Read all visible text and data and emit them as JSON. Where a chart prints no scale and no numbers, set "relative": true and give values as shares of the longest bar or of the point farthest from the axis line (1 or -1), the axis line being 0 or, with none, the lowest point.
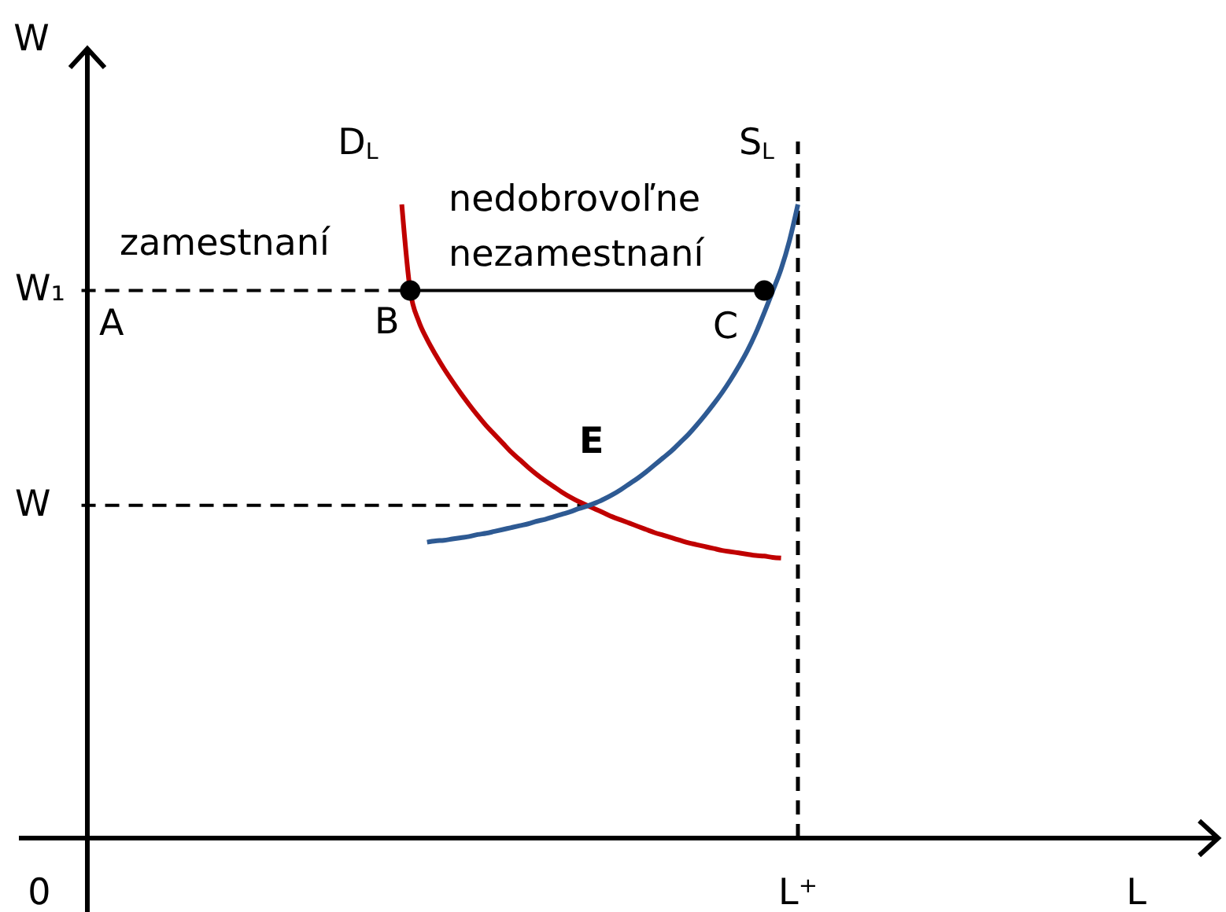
{
  "chart_data": {
    "type": "line",
    "relative": true,
    "ylabel": "W",
    "categories": [
      "0",
      null,
      null,
      null,
      null,
      null,
      null,
      null,
      null,
      null,
      null,
      null,
      null,
      null,
      null,
      null,
      null,
      null,
      null,
      null,
      null,
      null,
      null,
      null,
      null,
      null,
      null,
      null,
      null,
      null,
      null,
      null,
      null,
      null,
      null,
      null,
      null,
      null,
      null,
      null,
      null,
      null,
      null,
      null,
      null,
      null,
      null,
      null,
      null,
      null,
      null,
      null,
      null,
      null,
      null,
      null,
      null,
      null,
      null,
      null,
      null,
      null,
      null,
      null,
      null,
      null,
      null,
      null,
      null,
      null,
      null,
      null,
      null,
      null,
      null,
      null,
      null,
      null,
      null,
      null,
      null,
      null,
      null,
      null,
      null,
      null,
      null,
      null,
      null,
      null,
      "L⁺"
    ],
    "series": [
      {
        "color": "#000000",
        "line_style": "dashed",
        "values": [
          null,
          null,
          null,
          null,
          null,
          0.864,
          0.864,
          0.864,
          0.864,
          0.864,
          0.864,
          0.864,
          0.864,
          0.864,
          0.864,
          0.864,
          0.864,
          0.864,
          0.864,
          0.864,
          0.864,
          0.864,
          0.864,
          0.864,
          0.864,
          0.864,
          0.864,
          0.864,
          0.864,
          0.864,
          0.864,
          0.864,
          0.864,
          0.864,
          0.864,
          0.864,
          0.864,
          0.864,
          0.864,
          0.864,
          0.864,
          0.864,
          0.864,
          0.864,
          0.864,
          null,
          null,
          null,
          null,
          null,
          null,
          null,
          null,
          null,
          null,
          null,
          null,
          null,
          null,
          null,
          null,
          null,
          null,
          null,
          null,
          null,
          null,
          null,
          null,
          null,
          null,
          null,
          null,
          null,
          null,
          null,
          null,
          null,
          null,
          null,
          null,
          null,
          null,
          null,
          null,
          null,
          null,
          null,
          null,
          null,
          null
        ]
      },
      {
        "color": "#000000",
        "line_style": "dashed",
        "values": [
          null,
          null,
          null,
          null,
          null,
          0.525,
          0.525,
          0.525,
          0.525,
          0.525,
          0.525,
          0.525,
          0.525,
          0.525,
          0.525,
          0.525,
          0.525,
          0.525,
          0.525,
          0.525,
          0.525,
          0.525,
          0.525,
          0.525,
          0.525,
          0.525,
          0.525,
          0.525,
          0.525,
          0.525,
          0.525,
          0.525,
          0.525,
          0.525,
          0.525,
          0.525,
          0.525,
          0.525,
          0.525,
          0.525,
          0.525,
          0.525,
          0.525,
          0.525,
          0.525,
          0.525,
          0.525,
          0.525,
          0.525,
          0.525,
          0.525,
          0.525,
          0.525,
          0.525,
          0.525,
          0.525,
          0.525,
          0.525,
          0.525,
          0.525,
          0.525,
          0.525,
          0.525,
          0.525,
          0.525,
          0.525,
          null,
          null,
          null,
          null,
          null,
          null,
          null,
          null,
          null,
          null,
          null,
          null,
          null,
          null,
          null,
          null,
          null,
          null,
          null,
          null,
          null,
          null,
          null,
          null,
          null
        ]
      },
      {
        "name": "D$_{L}$",
        "color": "#c00000",
        "values": [
          null,
          null,
          null,
          null,
          null,
          null,
          null,
          null,
          null,
          null,
          null,
          null,
          null,
          null,
          null,
          null,
          null,
          null,
          null,
          null,
          null,
          null,
          null,
          null,
          null,
          null,
          null,
          null,
          null,
          null,
          null,
          null,
          null,
          null,
          null,
          null,
          null,
          null,
          null,
          null,
          null,
          null,
          null,
          1,
          0.864,
          0.816,
          0.787,
          0.763,
          0.741,
          0.721,
          0.702,
          0.684,
          0.667,
          0.651,
          0.637,
          0.623,
          0.609,
          0.597,
          0.585,
          0.574,
          0.564,
          0.555,
          0.546,
          0.538,
          0.531,
          0.525,
          0.519,
          0.513,
          0.507,
          0.502,
          0.497,
          0.492,
          0.487,
          0.482,
          0.478,
          0.474,
          0.47,
          0.466,
          0.463,
          0.46,
          0.457,
          0.454,
          0.452,
          0.45,
          0.448,
          0.446,
          0.445,
          0.443,
          0.442,
          null,
          null
        ]
      },
      {
        "name": "S$_{L}$",
        "color": "#2e5a93",
        "values": [
          null,
          null,
          null,
          null,
          null,
          null,
          null,
          null,
          null,
          null,
          null,
          null,
          null,
          null,
          null,
          null,
          null,
          null,
          null,
          null,
          null,
          null,
          null,
          null,
          null,
          null,
          null,
          null,
          null,
          null,
          null,
          null,
          null,
          null,
          null,
          null,
          null,
          null,
          null,
          null,
          null,
          null,
          null,
          null,
          null,
          null,
          0.467,
          0.469,
          0.47,
          0.472,
          0.474,
          0.476,
          0.479,
          0.481,
          0.484,
          0.487,
          0.49,
          0.493,
          0.496,
          0.5,
          0.503,
          0.507,
          0.511,
          0.515,
          0.52,
          0.524,
          0.529,
          0.535,
          0.542,
          0.55,
          0.559,
          0.568,
          0.578,
          0.589,
          0.6,
          0.611,
          0.624,
          0.637,
          0.652,
          0.668,
          0.685,
          0.703,
          0.723,
          0.745,
          0.769,
          0.797,
          0.829,
          0.863,
          0.898,
          0.943,
          1
        ]
      },
      {
        "color": "#000000",
        "values": [
          null,
          null,
          null,
          null,
          null,
          null,
          null,
          null,
          null,
          null,
          null,
          null,
          null,
          null,
          null,
          null,
          null,
          null,
          null,
          null,
          null,
          null,
          null,
          null,
          null,
          null,
          null,
          null,
          null,
          null,
          null,
          null,
          null,
          null,
          null,
          null,
          null,
          null,
          null,
          null,
          null,
          null,
          null,
          null,
          0.864,
          0.864,
          0.864,
          0.864,
          0.864,
          0.864,
          0.864,
          0.864,
          0.864,
          0.864,
          0.864,
          0.864,
          0.864,
          0.864,
          0.864,
          0.864,
          0.864,
          0.864,
          0.864,
          0.864,
          0.864,
          0.864,
          0.864,
          0.864,
          0.864,
          0.864,
          0.864,
          0.864,
          0.864,
          0.864,
          0.864,
          0.864,
          0.864,
          0.864,
          0.864,
          0.864,
          0.864,
          0.864,
          0.864,
          0.864,
          0.864,
          0.864,
          0.864,
          null,
          null,
          null,
          null
        ]
      },
      {
        "type": "scatter",
        "color": "#000000",
        "marker": "circle",
        "values": [
          null,
          null,
          null,
          null,
          null,
          null,
          null,
          null,
          null,
          null,
          null,
          null,
          null,
          null,
          null,
          null,
          null,
          null,
          null,
          null,
          null,
          null,
          null,
          null,
          null,
          null,
          null,
          null,
          null,
          null,
          null,
          null,
          null,
          null,
          null,
          null,
          null,
          null,
          null,
          null,
          null,
          null,
          null,
          null,
          0.864,
          null,
          null,
          null,
          null,
          null,
          null,
          null,
          null,
          null,
          null,
          null,
          null,
          null,
          null,
          null,
          null,
          null,
          null,
          null,
          null,
          null,
          null,
          null,
          null,
          null,
          null,
          null,
          null,
          null,
          null,
          null,
          null,
          null,
          null,
          null,
          null,
          null,
          null,
          null,
          null,
          null,
          0.864,
          null,
          null,
          null,
          null
        ]
      }
    ],
    "ref_lines": [
      {
        "axis": "x",
        "value": "L⁺",
        "color": "#000000",
        "line_style": "dashed"
      }
    ],
    "annotations": [
      "zamestnaní",
      "nedobrovoľne nezamestnaní",
      "A",
      "B",
      "C",
      "E",
      "W₁",
      "W",
      "L"
    ]
  }
}
